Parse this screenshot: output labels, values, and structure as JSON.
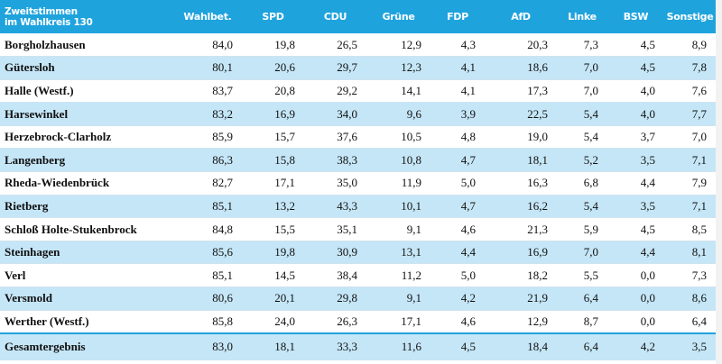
{
  "table": {
    "header": {
      "title_line1": "Zweitstimmen",
      "title_line2": "im Wahlkreis 130",
      "columns": [
        "Wahlbet.",
        "SPD",
        "CDU",
        "Grüne",
        "FDP",
        "AfD",
        "Linke",
        "BSW",
        "Sonstige"
      ]
    },
    "rows": [
      {
        "name": "Borgholzhausen",
        "values": [
          "84,0",
          "19,8",
          "26,5",
          "12,9",
          "4,3",
          "20,3",
          "7,3",
          "4,5",
          "8,9"
        ]
      },
      {
        "name": "Gütersloh",
        "values": [
          "80,1",
          "20,6",
          "29,7",
          "12,3",
          "4,1",
          "18,6",
          "7,0",
          "4,5",
          "7,8"
        ]
      },
      {
        "name": "Halle (Westf.)",
        "values": [
          "83,7",
          "20,8",
          "29,2",
          "14,1",
          "4,1",
          "17,3",
          "7,0",
          "4,0",
          "7,6"
        ]
      },
      {
        "name": "Harsewinkel",
        "values": [
          "83,2",
          "16,9",
          "34,0",
          "9,6",
          "3,9",
          "22,5",
          "5,4",
          "4,0",
          "7,7"
        ]
      },
      {
        "name": "Herzebrock-Clarholz",
        "values": [
          "85,9",
          "15,7",
          "37,6",
          "10,5",
          "4,8",
          "19,0",
          "5,4",
          "3,7",
          "7,0"
        ]
      },
      {
        "name": "Langenberg",
        "values": [
          "86,3",
          "15,8",
          "38,3",
          "10,8",
          "4,7",
          "18,1",
          "5,2",
          "3,5",
          "7,1"
        ]
      },
      {
        "name": "Rheda-Wiedenbrück",
        "values": [
          "82,7",
          "17,1",
          "35,0",
          "11,9",
          "5,0",
          "16,3",
          "6,8",
          "4,4",
          "7,9"
        ]
      },
      {
        "name": "Rietberg",
        "values": [
          "85,1",
          "13,2",
          "43,3",
          "10,1",
          "4,7",
          "16,2",
          "5,4",
          "3,5",
          "7,1"
        ]
      },
      {
        "name": "Schloß Holte-Stukenbrock",
        "values": [
          "84,8",
          "15,5",
          "35,1",
          "9,1",
          "4,6",
          "21,3",
          "5,9",
          "4,5",
          "8,5"
        ]
      },
      {
        "name": "Steinhagen",
        "values": [
          "85,6",
          "19,8",
          "30,9",
          "13,1",
          "4,4",
          "16,9",
          "7,0",
          "4,4",
          "8,1"
        ]
      },
      {
        "name": "Verl",
        "values": [
          "85,1",
          "14,5",
          "38,4",
          "11,2",
          "5,0",
          "18,2",
          "5,5",
          "0,0",
          "7,3"
        ]
      },
      {
        "name": "Versmold",
        "values": [
          "80,6",
          "20,1",
          "29,8",
          "9,1",
          "4,2",
          "21,9",
          "6,4",
          "0,0",
          "8,6"
        ]
      },
      {
        "name": "Werther (Westf.)",
        "values": [
          "85,8",
          "24,0",
          "26,3",
          "17,1",
          "4,6",
          "12,9",
          "8,7",
          "0,0",
          "6,4"
        ]
      }
    ],
    "total": {
      "name": "Gesamtergebnis",
      "values": [
        "83,0",
        "18,1",
        "33,3",
        "11,6",
        "4,5",
        "18,4",
        "6,4",
        "4,2",
        "3,5"
      ]
    }
  },
  "colors": {
    "header_bg": "#1fa3dd",
    "stripe": "#c5e6f7",
    "header_text": "#ffffff"
  }
}
